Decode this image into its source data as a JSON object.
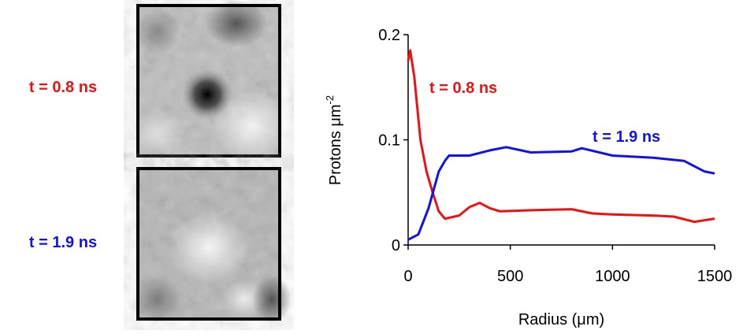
{
  "panels": [
    {
      "label": "t = 0.8 ns",
      "color": "#ee1111"
    },
    {
      "label": "t = 1.9 ns",
      "color": "#1111ee"
    }
  ],
  "chart_data": {
    "type": "line",
    "xlabel": "Radius (μm)",
    "ylabel": {
      "text": "Protons μm",
      "superscript": "-2"
    },
    "xlim": [
      0,
      1500
    ],
    "xticks": [
      0,
      500,
      1000,
      1500
    ],
    "ylim": [
      0,
      0.2
    ],
    "yticks": [
      0,
      0.1,
      0.2
    ],
    "annotations": [
      {
        "text": "t = 0.8 ns",
        "color": "#ee1111"
      },
      {
        "text": "t = 1.9 ns",
        "color": "#1111ee"
      }
    ],
    "series": [
      {
        "name": "t = 0.8 ns",
        "color": "#ee1111",
        "x": [
          0,
          10,
          30,
          60,
          90,
          120,
          150,
          180,
          250,
          300,
          350,
          400,
          450,
          600,
          800,
          900,
          1000,
          1200,
          1300,
          1400,
          1500
        ],
        "values": [
          0.175,
          0.185,
          0.16,
          0.1,
          0.07,
          0.05,
          0.032,
          0.025,
          0.028,
          0.036,
          0.04,
          0.035,
          0.032,
          0.033,
          0.034,
          0.03,
          0.029,
          0.028,
          0.027,
          0.022,
          0.025
        ]
      },
      {
        "name": "t = 1.9 ns",
        "color": "#1111ee",
        "x": [
          0,
          50,
          100,
          150,
          180,
          200,
          300,
          400,
          480,
          600,
          800,
          850,
          1000,
          1200,
          1350,
          1450,
          1500
        ],
        "values": [
          0.005,
          0.01,
          0.035,
          0.07,
          0.08,
          0.085,
          0.085,
          0.09,
          0.093,
          0.088,
          0.089,
          0.092,
          0.085,
          0.083,
          0.08,
          0.07,
          0.068
        ]
      }
    ]
  }
}
